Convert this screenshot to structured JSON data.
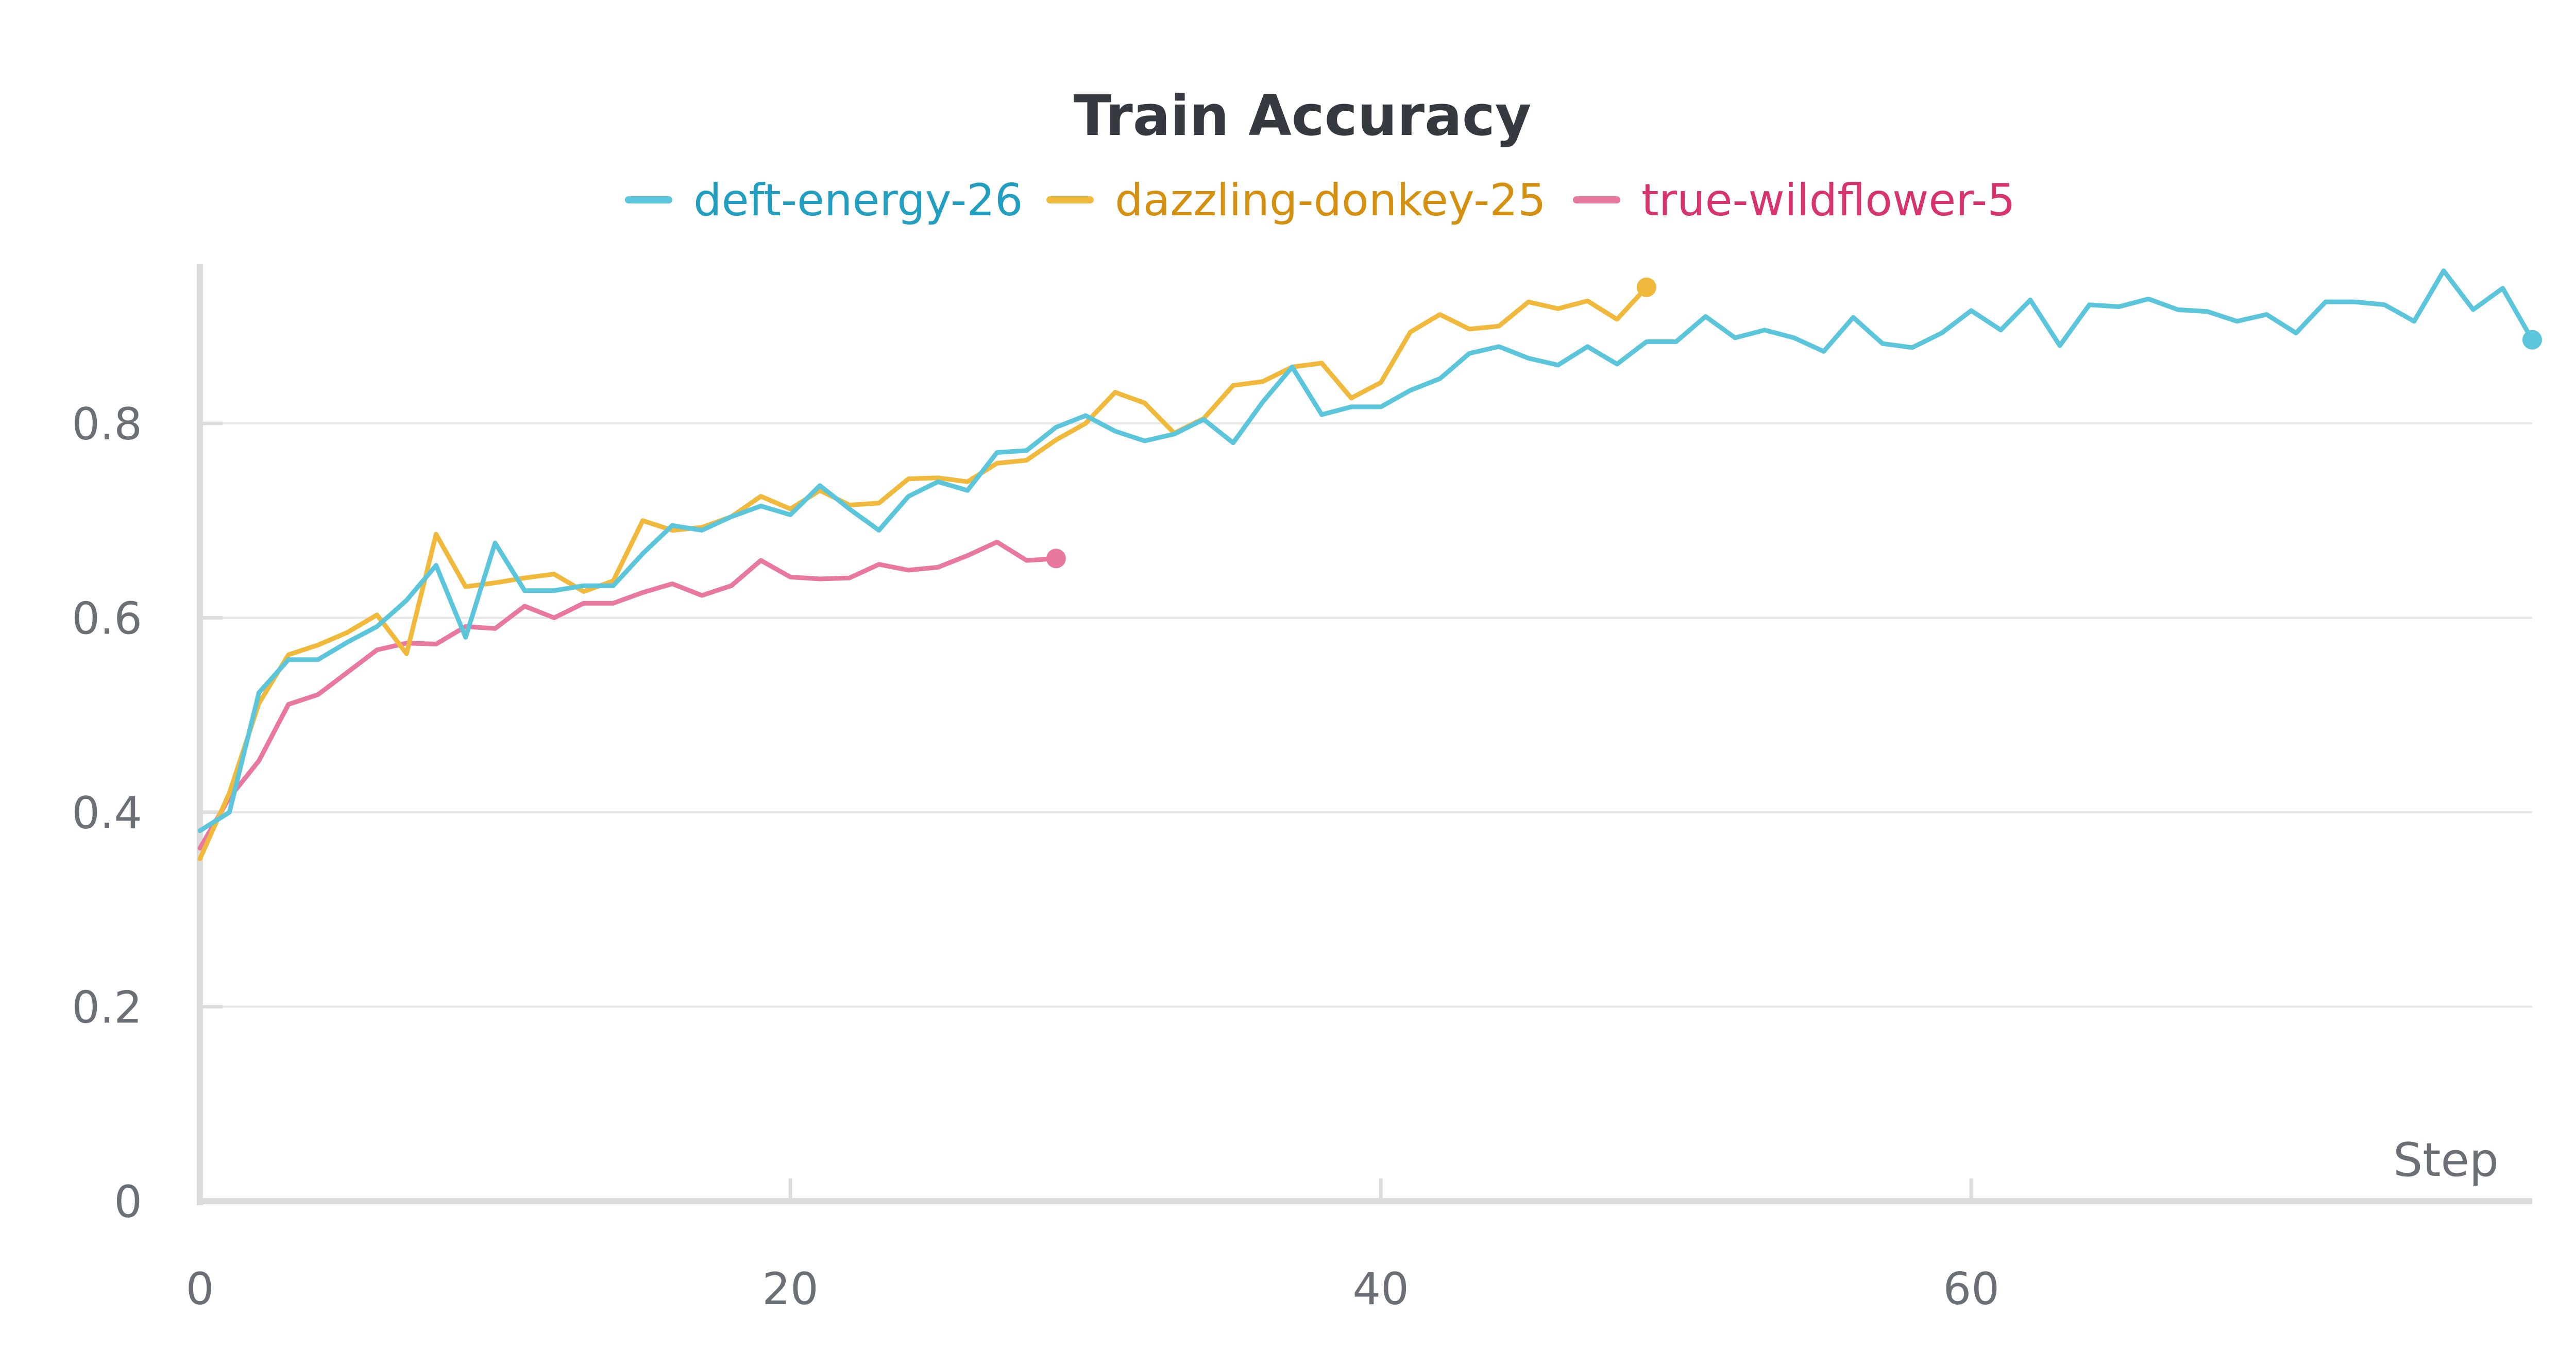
{
  "chart_data": {
    "type": "line",
    "title": "Train Accuracy",
    "xlabel": "Step",
    "ylabel": "",
    "xlim": [
      0,
      79
    ],
    "ylim": [
      0,
      0.96
    ],
    "x_ticks": [
      0,
      20,
      40,
      60
    ],
    "y_ticks": [
      0,
      0.2,
      0.4,
      0.6,
      0.8
    ],
    "x_tick_labels": [
      "0",
      "20",
      "40",
      "60"
    ],
    "y_tick_labels": [
      "0",
      "0.2",
      "0.4",
      "0.6",
      "0.8"
    ],
    "grid": true,
    "legend_position": "top-center",
    "series": [
      {
        "name": "deft-energy-26",
        "color": "#5bc5db",
        "label_color": "#229fc0",
        "values": [
          0.381,
          0.4,
          0.523,
          0.557,
          0.557,
          0.575,
          0.591,
          0.618,
          0.654,
          0.58,
          0.677,
          0.628,
          0.628,
          0.633,
          0.633,
          0.666,
          0.695,
          0.69,
          0.704,
          0.715,
          0.706,
          0.736,
          0.712,
          0.69,
          0.725,
          0.74,
          0.731,
          0.77,
          0.772,
          0.796,
          0.808,
          0.792,
          0.782,
          0.789,
          0.804,
          0.78,
          0.822,
          0.858,
          0.809,
          0.817,
          0.817,
          0.834,
          0.846,
          0.872,
          0.879,
          0.867,
          0.86,
          0.879,
          0.861,
          0.884,
          0.884,
          0.91,
          0.888,
          0.896,
          0.888,
          0.874,
          0.909,
          0.882,
          0.878,
          0.893,
          0.916,
          0.896,
          0.927,
          0.88,
          0.922,
          0.92,
          0.928,
          0.917,
          0.915,
          0.905,
          0.912,
          0.893,
          0.925,
          0.925,
          0.922,
          0.905,
          0.957,
          0.917,
          0.939,
          0.886
        ]
      },
      {
        "name": "dazzling-donkey-25",
        "color": "#f0b93b",
        "label_color": "#d4900e",
        "values": [
          0.352,
          0.42,
          0.512,
          0.562,
          0.572,
          0.585,
          0.603,
          0.563,
          0.686,
          0.632,
          0.636,
          0.641,
          0.645,
          0.627,
          0.638,
          0.7,
          0.69,
          0.693,
          0.704,
          0.725,
          0.712,
          0.731,
          0.716,
          0.718,
          0.743,
          0.744,
          0.74,
          0.759,
          0.762,
          0.783,
          0.8,
          0.832,
          0.821,
          0.79,
          0.805,
          0.839,
          0.843,
          0.858,
          0.862,
          0.826,
          0.842,
          0.894,
          0.912,
          0.897,
          0.9,
          0.925,
          0.918,
          0.926,
          0.907,
          0.94
        ]
      },
      {
        "name": "true-wildflower-5",
        "color": "#e8789f",
        "label_color": "#d7336e",
        "values": [
          0.363,
          0.415,
          0.453,
          0.511,
          0.521,
          0.544,
          0.567,
          0.574,
          0.573,
          0.591,
          0.589,
          0.612,
          0.6,
          0.615,
          0.615,
          0.626,
          0.635,
          0.623,
          0.633,
          0.659,
          0.642,
          0.64,
          0.641,
          0.655,
          0.649,
          0.652,
          0.664,
          0.678,
          0.659,
          0.661
        ]
      }
    ]
  }
}
